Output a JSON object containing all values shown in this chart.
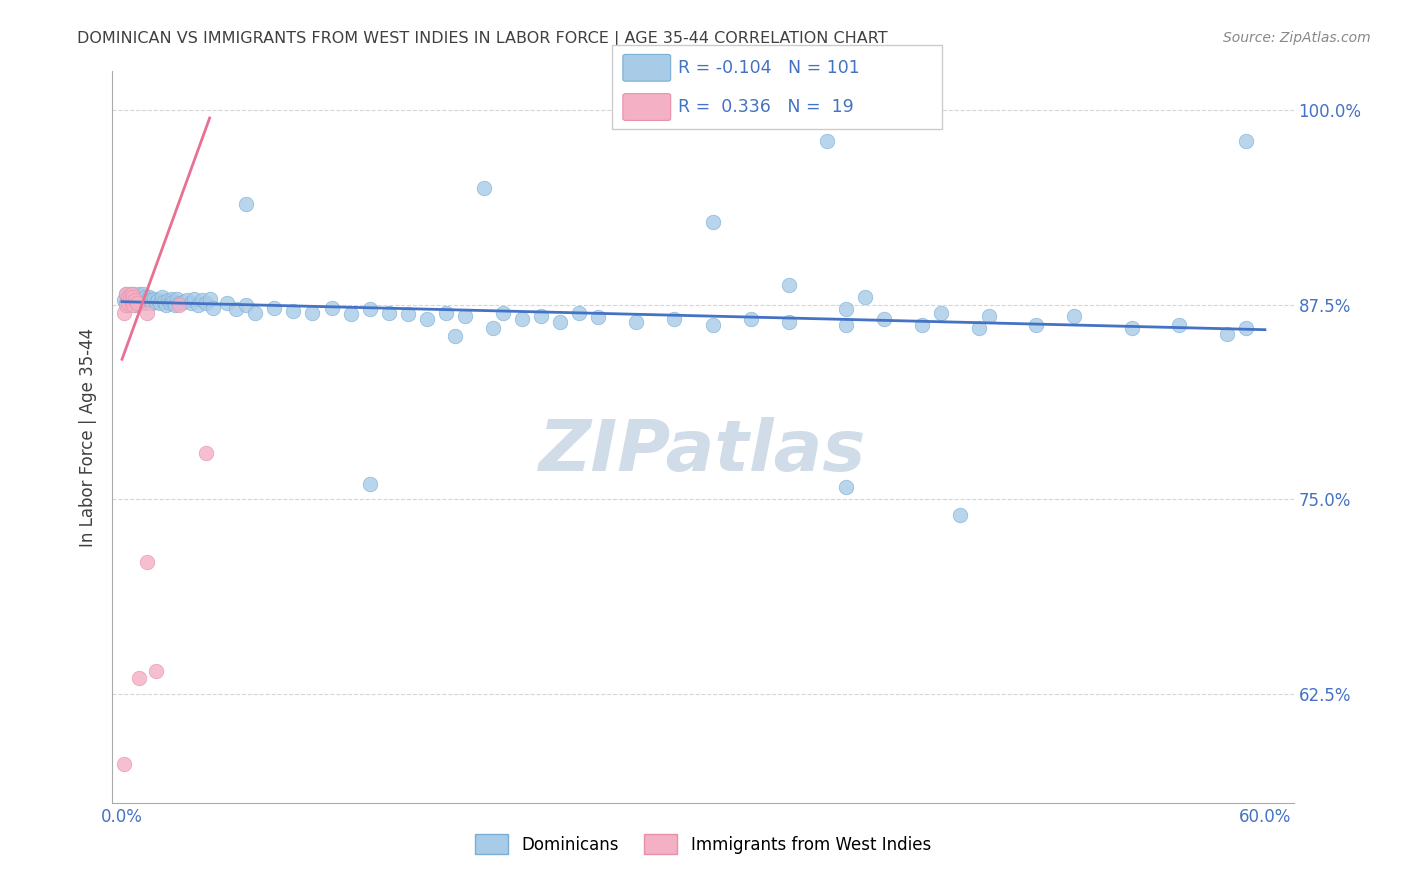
{
  "title": "DOMINICAN VS IMMIGRANTS FROM WEST INDIES IN LABOR FORCE | AGE 35-44 CORRELATION CHART",
  "source": "Source: ZipAtlas.com",
  "ylabel": "In Labor Force | Age 35-44",
  "xlim": [
    -0.005,
    0.615
  ],
  "ylim": [
    0.555,
    1.025
  ],
  "yticks": [
    0.625,
    0.75,
    0.875,
    1.0
  ],
  "ytick_labels": [
    "62.5%",
    "75.0%",
    "87.5%",
    "100.0%"
  ],
  "xticks": [
    0.0,
    0.1,
    0.2,
    0.3,
    0.4,
    0.5,
    0.6
  ],
  "xtick_labels": [
    "0.0%",
    "",
    "",
    "",
    "",
    "",
    "60.0%"
  ],
  "blue_R": -0.104,
  "blue_N": 101,
  "pink_R": 0.336,
  "pink_N": 19,
  "blue_color": "#A8CBE8",
  "blue_edge": "#7AAED4",
  "pink_color": "#F4B0C4",
  "pink_edge": "#E890A8",
  "blue_line_color": "#4472C4",
  "pink_line_color": "#E87090",
  "title_color": "#404040",
  "source_color": "#888888",
  "axis_tick_color": "#4472C4",
  "grid_color": "#CCCCCC",
  "watermark": "ZIPatlas",
  "watermark_color": "#D0DCE8",
  "legend_box_color": "#CCCCCC",
  "blue_x": [
    0.001,
    0.002,
    0.002,
    0.003,
    0.003,
    0.004,
    0.004,
    0.005,
    0.005,
    0.006,
    0.006,
    0.007,
    0.007,
    0.008,
    0.008,
    0.009,
    0.009,
    0.01,
    0.01,
    0.011,
    0.011,
    0.012,
    0.012,
    0.013,
    0.014,
    0.015,
    0.016,
    0.017,
    0.018,
    0.019,
    0.02,
    0.021,
    0.022,
    0.023,
    0.024,
    0.025,
    0.026,
    0.027,
    0.028,
    0.029,
    0.03,
    0.032,
    0.034,
    0.036,
    0.038,
    0.04,
    0.042,
    0.044,
    0.046,
    0.048,
    0.055,
    0.06,
    0.065,
    0.07,
    0.08,
    0.09,
    0.1,
    0.11,
    0.12,
    0.13,
    0.14,
    0.15,
    0.16,
    0.17,
    0.18,
    0.2,
    0.21,
    0.22,
    0.23,
    0.24,
    0.25,
    0.27,
    0.29,
    0.31,
    0.33,
    0.35,
    0.38,
    0.4,
    0.42,
    0.45,
    0.37,
    0.59,
    0.065,
    0.19,
    0.31,
    0.13,
    0.175,
    0.195,
    0.35,
    0.38,
    0.39,
    0.43,
    0.455,
    0.48,
    0.5,
    0.53,
    0.555,
    0.38,
    0.44,
    0.59,
    0.58
  ],
  "blue_y": [
    0.878,
    0.882,
    0.876,
    0.88,
    0.875,
    0.879,
    0.882,
    0.878,
    0.876,
    0.882,
    0.877,
    0.88,
    0.875,
    0.879,
    0.876,
    0.882,
    0.877,
    0.88,
    0.876,
    0.878,
    0.882,
    0.876,
    0.88,
    0.877,
    0.88,
    0.878,
    0.876,
    0.879,
    0.877,
    0.878,
    0.876,
    0.88,
    0.877,
    0.875,
    0.878,
    0.876,
    0.879,
    0.877,
    0.875,
    0.879,
    0.876,
    0.877,
    0.878,
    0.876,
    0.879,
    0.875,
    0.878,
    0.876,
    0.879,
    0.873,
    0.876,
    0.872,
    0.875,
    0.87,
    0.873,
    0.871,
    0.87,
    0.873,
    0.869,
    0.872,
    0.87,
    0.869,
    0.866,
    0.87,
    0.868,
    0.87,
    0.866,
    0.868,
    0.864,
    0.87,
    0.867,
    0.864,
    0.866,
    0.862,
    0.866,
    0.864,
    0.862,
    0.866,
    0.862,
    0.86,
    0.98,
    0.98,
    0.94,
    0.95,
    0.928,
    0.76,
    0.855,
    0.86,
    0.888,
    0.872,
    0.88,
    0.87,
    0.868,
    0.862,
    0.868,
    0.86,
    0.862,
    0.758,
    0.74,
    0.86,
    0.856
  ],
  "pink_x": [
    0.001,
    0.001,
    0.002,
    0.002,
    0.003,
    0.003,
    0.004,
    0.005,
    0.005,
    0.006,
    0.006,
    0.007,
    0.008,
    0.009,
    0.013,
    0.013,
    0.018,
    0.03,
    0.044
  ],
  "pink_y": [
    0.58,
    0.87,
    0.882,
    0.875,
    0.88,
    0.876,
    0.88,
    0.882,
    0.877,
    0.88,
    0.875,
    0.878,
    0.876,
    0.635,
    0.71,
    0.87,
    0.64,
    0.875,
    0.78
  ],
  "blue_line_x0": 0.0,
  "blue_line_x1": 0.6,
  "blue_line_y0": 0.877,
  "blue_line_y1": 0.859,
  "pink_line_x0": 0.0,
  "pink_line_x1": 0.046,
  "pink_line_y0": 0.84,
  "pink_line_y1": 0.995,
  "dot_size": 110,
  "dot_alpha": 0.8,
  "dot_linewidth": 0.5
}
